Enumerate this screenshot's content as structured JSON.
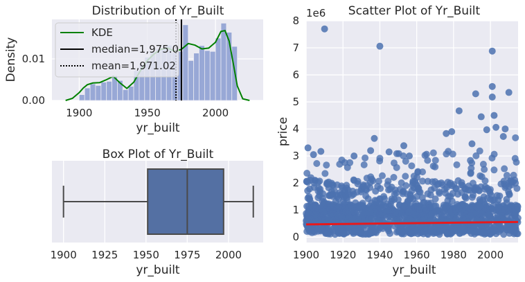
{
  "chart_data": [
    {
      "type": "histogram",
      "title": "Distribution of Yr_Built",
      "xlabel": "yr_built",
      "ylabel": "Density",
      "xlim": [
        1880,
        2035
      ],
      "ylim": [
        0,
        0.0195
      ],
      "xticks": [
        "1900",
        "1950",
        "2000"
      ],
      "yticks": [
        "0.00",
        "0.01"
      ],
      "bins": [
        {
          "x0": 1900,
          "x1": 1904,
          "v": 0.0014
        },
        {
          "x0": 1904,
          "x1": 1908,
          "v": 0.003
        },
        {
          "x0": 1908,
          "x1": 1912,
          "v": 0.004
        },
        {
          "x0": 1912,
          "x1": 1916,
          "v": 0.0036
        },
        {
          "x0": 1916,
          "x1": 1920,
          "v": 0.0044
        },
        {
          "x0": 1920,
          "x1": 1924,
          "v": 0.0046
        },
        {
          "x0": 1924,
          "x1": 1928,
          "v": 0.006
        },
        {
          "x0": 1928,
          "x1": 1932,
          "v": 0.0048
        },
        {
          "x0": 1932,
          "x1": 1936,
          "v": 0.0026
        },
        {
          "x0": 1936,
          "x1": 1940,
          "v": 0.0034
        },
        {
          "x0": 1940,
          "x1": 1944,
          "v": 0.0072
        },
        {
          "x0": 1944,
          "x1": 1948,
          "v": 0.0086
        },
        {
          "x0": 1948,
          "x1": 1952,
          "v": 0.0104
        },
        {
          "x0": 1952,
          "x1": 1956,
          "v": 0.0118
        },
        {
          "x0": 1956,
          "x1": 1960,
          "v": 0.0124
        },
        {
          "x0": 1960,
          "x1": 1964,
          "v": 0.0126
        },
        {
          "x0": 1964,
          "x1": 1968,
          "v": 0.0133
        },
        {
          "x0": 1968,
          "x1": 1972,
          "v": 0.0115
        },
        {
          "x0": 1972,
          "x1": 1976,
          "v": 0.0118
        },
        {
          "x0": 1976,
          "x1": 1980,
          "v": 0.0182
        },
        {
          "x0": 1980,
          "x1": 1984,
          "v": 0.0096
        },
        {
          "x0": 1984,
          "x1": 1988,
          "v": 0.0114
        },
        {
          "x0": 1988,
          "x1": 1992,
          "v": 0.0132
        },
        {
          "x0": 1992,
          "x1": 1996,
          "v": 0.012
        },
        {
          "x0": 1996,
          "x1": 2000,
          "v": 0.0118
        },
        {
          "x0": 2000,
          "x1": 2004,
          "v": 0.015
        },
        {
          "x0": 2004,
          "x1": 2008,
          "v": 0.0186
        },
        {
          "x0": 2008,
          "x1": 2012,
          "v": 0.0164
        },
        {
          "x0": 2012,
          "x1": 2016,
          "v": 0.013
        }
      ],
      "kde": {
        "x": [
          1890,
          1895,
          1900,
          1903,
          1906,
          1910,
          1915,
          1920,
          1925,
          1930,
          1935,
          1940,
          1945,
          1950,
          1955,
          1960,
          1965,
          1970,
          1975,
          1980,
          1985,
          1990,
          1995,
          2000,
          2004,
          2007,
          2010,
          2013,
          2016,
          2020,
          2025
        ],
        "y": [
          0.0,
          0.0005,
          0.0019,
          0.003,
          0.0038,
          0.0042,
          0.0043,
          0.005,
          0.0058,
          0.0042,
          0.0029,
          0.0044,
          0.0072,
          0.0096,
          0.0112,
          0.0123,
          0.0126,
          0.0118,
          0.0123,
          0.0137,
          0.0133,
          0.0124,
          0.0126,
          0.014,
          0.0166,
          0.0168,
          0.0143,
          0.009,
          0.0035,
          0.0004,
          0.0
        ]
      },
      "median": 1975.0,
      "mean": 1971.02,
      "legend": [
        {
          "label": "KDE",
          "color": "#008000",
          "style": "solid"
        },
        {
          "label": "median=1,975.0",
          "color": "#000000",
          "style": "solid"
        },
        {
          "label": "mean=1,971.02",
          "color": "#000000",
          "style": "dotted"
        }
      ],
      "legend_loc": "upper left",
      "bar_color": "#98a8d6",
      "kde_color": "#008000"
    },
    {
      "type": "box",
      "title": "Box Plot of Yr_Built",
      "xlabel": "yr_built",
      "xlim": [
        1893,
        2021
      ],
      "xticks": [
        "1900",
        "1925",
        "1950",
        "1975",
        "2000"
      ],
      "min": 1900,
      "q1": 1951,
      "median": 1975,
      "q3": 1997,
      "max": 2015,
      "color": "#5470a3"
    },
    {
      "type": "scatter",
      "title": "Scatter Plot of Yr_Built",
      "xlabel": "yr_built",
      "ylabel": "price",
      "offset_label": "1e6",
      "xlim": [
        1900,
        2015
      ],
      "ylim": [
        -0.2,
        8.0
      ],
      "xticks": [
        "1900",
        "1920",
        "1940",
        "1960",
        "1980",
        "2000"
      ],
      "yticks": [
        "0",
        "1",
        "2",
        "3",
        "4",
        "5",
        "6",
        "7",
        "8"
      ],
      "regression": {
        "x": [
          1900,
          2015
        ],
        "y": [
          0.47,
          0.56
        ],
        "color": "#e8191c"
      },
      "outliers": {
        "x": [
          1910,
          1940,
          2001,
          2001,
          2010,
          1992,
          2001,
          1983,
          2002,
          1995,
          1998,
          1901,
          1908,
          1937,
          1953,
          1976,
          1979,
          1990,
          2003,
          2007,
          2008,
          1935,
          1904,
          1945,
          1956,
          1926
        ],
        "y": [
          7.7,
          7.06,
          6.88,
          5.57,
          5.35,
          5.3,
          5.18,
          4.67,
          4.5,
          4.45,
          3.97,
          3.3,
          3.17,
          3.65,
          3.38,
          3.83,
          3.9,
          3.45,
          4.06,
          3.72,
          4.0,
          3.2,
          3.05,
          3.15,
          3.0,
          3.0
        ]
      },
      "point_color": "#4c72b0"
    }
  ]
}
